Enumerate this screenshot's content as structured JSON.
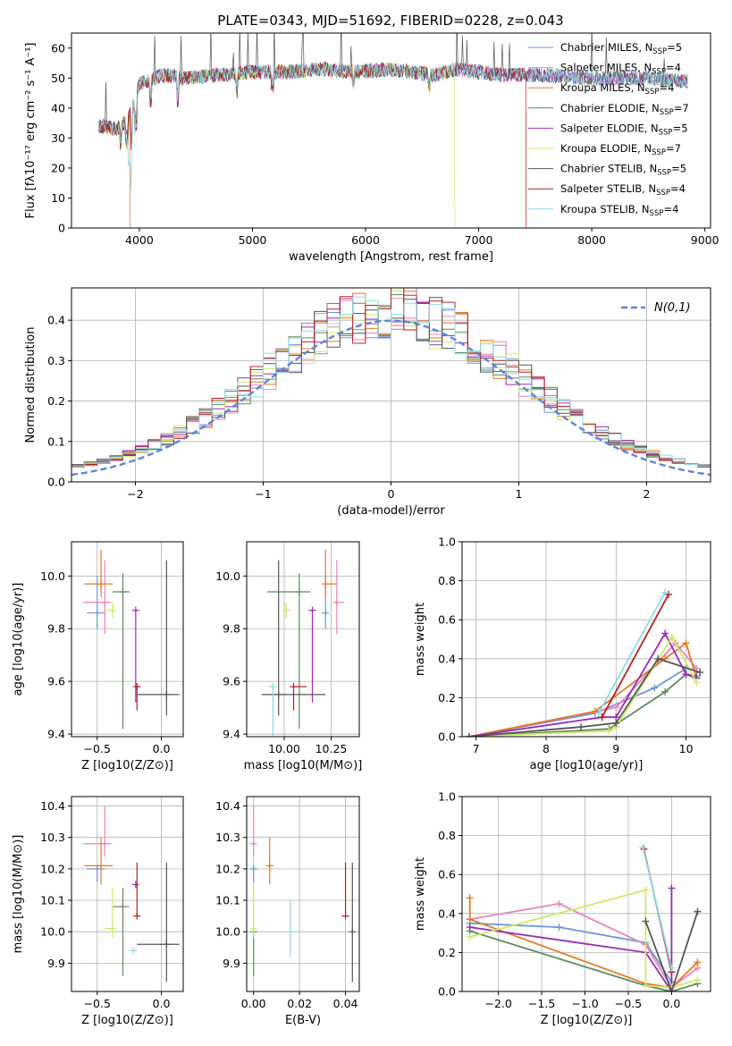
{
  "title": "PLATE=0343, MJD=51692, FIBERID=0228, z=0.043",
  "colors": {
    "Chabrier MILES": "#6f95d8",
    "Salpeter MILES": "#e884bb",
    "Kroupa MILES": "#e07a26",
    "Chabrier ELODIE": "#5e8a5b",
    "Salpeter ELODIE": "#9a2bb0",
    "Kroupa ELODIE": "#cde86a",
    "Chabrier STELIB": "#555555",
    "Salpeter STELIB": "#b22222",
    "Kroupa STELIB": "#8fd8e6",
    "normal": "#5b85d8"
  },
  "chart_data": [
    {
      "type": "line",
      "name": "spectrum",
      "xlabel": "wavelength [Angstrom, rest frame]",
      "ylabel": "Flux [fλ10⁻¹⁷ erg cm⁻² s⁻¹ A⁻¹]",
      "xlim": [
        3400,
        9050
      ],
      "ylim": [
        0,
        65
      ],
      "xticks": [
        4000,
        5000,
        6000,
        7000,
        8000,
        9000
      ],
      "yticks": [
        0,
        10,
        20,
        30,
        40,
        50,
        60
      ],
      "legend": "top-right",
      "legend_entries": [
        "Chabrier MILES, NSSP=5",
        "Salpeter MILES, NSSP=4",
        "Kroupa MILES, NSSP=4",
        "Chabrier ELODIE, NSSP=7",
        "Salpeter ELODIE, NSSP=5",
        "Kroupa ELODIE, NSSP=7",
        "Chabrier STELIB, NSSP=5",
        "Salpeter STELIB, NSSP=4",
        "Kroupa STELIB, NSSP=4"
      ],
      "continuum": [
        [
          3650,
          34
        ],
        [
          3800,
          33
        ],
        [
          3900,
          36
        ],
        [
          4000,
          48
        ],
        [
          4200,
          51
        ],
        [
          4400,
          50
        ],
        [
          4700,
          51
        ],
        [
          5000,
          52
        ],
        [
          5300,
          52
        ],
        [
          5600,
          53
        ],
        [
          5900,
          52
        ],
        [
          6200,
          53
        ],
        [
          6600,
          51
        ],
        [
          6800,
          53
        ],
        [
          7200,
          51
        ],
        [
          7600,
          51
        ],
        [
          8000,
          50
        ],
        [
          8500,
          50
        ],
        [
          8800,
          49
        ]
      ],
      "drops": [
        {
          "model": "Kroupa MILES",
          "x": 3920
        },
        {
          "model": "Kroupa ELODIE",
          "x": 6790
        },
        {
          "model": "Salpeter STELIB",
          "x": 7420
        }
      ]
    },
    {
      "type": "line",
      "name": "residual-histogram",
      "xlabel": "(data-model)/error",
      "ylabel": "Normed distribution",
      "xlim": [
        -2.5,
        2.5
      ],
      "ylim": [
        0,
        0.48
      ],
      "xticks": [
        -2,
        -1,
        0,
        1,
        2
      ],
      "yticks": [
        0.0,
        0.1,
        0.2,
        0.3,
        0.4
      ],
      "grid": true,
      "legend": "top-right",
      "legend_label": "N(0,1)",
      "bin_width": 0.1
    },
    {
      "type": "scatter",
      "name": "age-vs-Z",
      "xlabel": "Z [log10(Z/Z⊙)]",
      "ylabel": "age  [log10(age/yr)]",
      "xlim": [
        -0.7,
        0.17
      ],
      "ylim": [
        9.39,
        10.13
      ],
      "xticks": [
        -0.5,
        0.0
      ],
      "yticks": [
        9.4,
        9.6,
        9.8,
        10.0
      ],
      "grid": true,
      "points": [
        {
          "model": "Chabrier MILES",
          "x": -0.5,
          "y": 9.86,
          "xerr": [
            0.08,
            0.06
          ],
          "yerr": [
            0.06,
            0.14
          ]
        },
        {
          "model": "Salpeter MILES",
          "x": -0.44,
          "y": 9.9,
          "xerr": [
            0.17,
            0.05
          ],
          "yerr": [
            0.12,
            0.16
          ]
        },
        {
          "model": "Kroupa MILES",
          "x": -0.47,
          "y": 9.97,
          "xerr": [
            0.13,
            0.09
          ],
          "yerr": [
            0.05,
            0.13
          ]
        },
        {
          "model": "Chabrier ELODIE",
          "x": -0.3,
          "y": 9.94,
          "xerr": [
            0.08,
            0.05
          ],
          "yerr": [
            0.52,
            0.07
          ]
        },
        {
          "model": "Salpeter ELODIE",
          "x": -0.2,
          "y": 9.87,
          "xerr": [
            0.0,
            0.0
          ],
          "yerr": [
            0.35,
            0.0
          ]
        },
        {
          "model": "Kroupa ELODIE",
          "x": -0.38,
          "y": 9.87,
          "xerr": [
            0.06,
            0.02
          ],
          "yerr": [
            0.03,
            0.03
          ]
        },
        {
          "model": "Chabrier STELIB",
          "x": 0.04,
          "y": 9.55,
          "xerr": [
            0.23,
            0.1
          ],
          "yerr": [
            0.08,
            0.51
          ]
        },
        {
          "model": "Salpeter STELIB",
          "x": -0.19,
          "y": 9.58,
          "xerr": [
            0.02,
            0.02
          ],
          "yerr": [
            0.09,
            0.0
          ]
        }
      ]
    },
    {
      "type": "scatter",
      "name": "age-vs-mass",
      "xlabel": "mass [log10(M/M⊙)]",
      "ylabel": "",
      "xlim": [
        9.8,
        10.4
      ],
      "ylim": [
        9.39,
        10.13
      ],
      "xticks": [
        10.0,
        10.25
      ],
      "yticks": [
        9.4,
        9.6,
        9.8,
        10.0
      ],
      "grid": true,
      "points": [
        {
          "model": "Chabrier MILES",
          "x": 10.22,
          "y": 9.86,
          "xerr": [
            0.02,
            0.01
          ],
          "yerr": [
            0.06,
            0.14
          ]
        },
        {
          "model": "Salpeter MILES",
          "x": 10.28,
          "y": 9.9,
          "xerr": [
            0.02,
            0.04
          ],
          "yerr": [
            0.12,
            0.16
          ]
        },
        {
          "model": "Kroupa MILES",
          "x": 10.22,
          "y": 9.97,
          "xerr": [
            0.0,
            0.06
          ],
          "yerr": [
            0.05,
            0.13
          ]
        },
        {
          "model": "Chabrier ELODIE",
          "x": 10.08,
          "y": 9.94,
          "xerr": [
            0.17,
            0.06
          ],
          "yerr": [
            0.52,
            0.07
          ]
        },
        {
          "model": "Salpeter ELODIE",
          "x": 10.15,
          "y": 9.87,
          "xerr": [
            0.0,
            0.0
          ],
          "yerr": [
            0.35,
            0.0
          ]
        },
        {
          "model": "Kroupa ELODIE",
          "x": 10.01,
          "y": 9.87,
          "xerr": [
            0.0,
            0.01
          ],
          "yerr": [
            0.03,
            0.03
          ]
        },
        {
          "model": "Chabrier STELIB",
          "x": 9.97,
          "y": 9.55,
          "xerr": [
            0.09,
            0.25
          ],
          "yerr": [
            0.08,
            0.51
          ]
        },
        {
          "model": "Salpeter STELIB",
          "x": 10.05,
          "y": 9.58,
          "xerr": [
            0.0,
            0.07
          ],
          "yerr": [
            0.09,
            0.0
          ]
        },
        {
          "model": "Kroupa STELIB",
          "x": 9.94,
          "y": 9.58,
          "xerr": [
            0.0,
            0.01
          ],
          "yerr": [
            0.37,
            0.0
          ]
        }
      ]
    },
    {
      "type": "line",
      "name": "weight-vs-age",
      "xlabel": "age  [log10(age/yr)]",
      "ylabel": "mass weight",
      "xlim": [
        6.8,
        10.35
      ],
      "ylim": [
        0,
        1
      ],
      "xticks": [
        7,
        8,
        9,
        10
      ],
      "yticks": [
        0.0,
        0.2,
        0.4,
        0.6,
        0.8,
        1.0
      ],
      "grid": true,
      "series": [
        {
          "model": "Chabrier MILES",
          "x": [
            6.9,
            8.7,
            9.55,
            10.0
          ],
          "y": [
            0.0,
            0.12,
            0.25,
            0.35
          ]
        },
        {
          "model": "Salpeter MILES",
          "x": [
            6.9,
            9.0,
            9.85,
            10.15
          ],
          "y": [
            0.0,
            0.15,
            0.48,
            0.35
          ]
        },
        {
          "model": "Kroupa MILES",
          "x": [
            6.9,
            8.7,
            9.7,
            10.0,
            10.15
          ],
          "y": [
            0.0,
            0.13,
            0.4,
            0.48,
            0.3
          ]
        },
        {
          "model": "Chabrier ELODIE",
          "x": [
            6.9,
            8.9,
            9.7,
            10.0,
            10.15
          ],
          "y": [
            0.0,
            0.04,
            0.23,
            0.32,
            0.31
          ]
        },
        {
          "model": "Salpeter ELODIE",
          "x": [
            6.9,
            8.8,
            9.0,
            9.7,
            10.0,
            10.15
          ],
          "y": [
            0.0,
            0.1,
            0.1,
            0.53,
            0.32,
            0.3
          ]
        },
        {
          "model": "Kroupa ELODIE",
          "x": [
            6.9,
            8.9,
            9.0,
            9.8,
            10.15
          ],
          "y": [
            0.0,
            0.03,
            0.05,
            0.51,
            0.28
          ]
        },
        {
          "model": "Chabrier STELIB",
          "x": [
            6.9,
            8.5,
            9.0,
            9.6,
            10.2
          ],
          "y": [
            0.0,
            0.05,
            0.07,
            0.4,
            0.33
          ]
        },
        {
          "model": "Salpeter STELIB",
          "x": [
            8.8,
            9.75
          ],
          "y": [
            0.1,
            0.73
          ]
        },
        {
          "model": "Kroupa STELIB",
          "x": [
            8.75,
            9.7
          ],
          "y": [
            0.12,
            0.74
          ]
        }
      ]
    },
    {
      "type": "scatter",
      "name": "mass-vs-Z",
      "xlabel": "Z [log10(Z/Z⊙)]",
      "ylabel": "mass [log10(M/M⊙)]",
      "xlim": [
        -0.7,
        0.17
      ],
      "ylim": [
        9.81,
        10.43
      ],
      "xticks": [
        -0.5,
        0.0
      ],
      "yticks": [
        9.9,
        10.0,
        10.1,
        10.2,
        10.3,
        10.4
      ],
      "grid": true,
      "points": [
        {
          "model": "Chabrier MILES",
          "x": -0.5,
          "y": 10.2,
          "xerr": [
            0.08,
            0.06
          ],
          "yerr": [
            0.04,
            0.01
          ]
        },
        {
          "model": "Salpeter MILES",
          "x": -0.44,
          "y": 10.28,
          "xerr": [
            0.17,
            0.05
          ],
          "yerr": [
            0.04,
            0.12
          ]
        },
        {
          "model": "Kroupa MILES",
          "x": -0.47,
          "y": 10.21,
          "xerr": [
            0.13,
            0.09
          ],
          "yerr": [
            0.06,
            0.09
          ]
        },
        {
          "model": "Chabrier ELODIE",
          "x": -0.3,
          "y": 10.08,
          "xerr": [
            0.08,
            0.05
          ],
          "yerr": [
            0.22,
            0.06
          ]
        },
        {
          "model": "Salpeter ELODIE",
          "x": -0.2,
          "y": 10.15,
          "xerr": [
            0.0,
            0.0
          ],
          "yerr": [
            0.0,
            0.0
          ]
        },
        {
          "model": "Kroupa ELODIE",
          "x": -0.38,
          "y": 10.01,
          "xerr": [
            0.06,
            0.02
          ],
          "yerr": [
            0.03,
            0.13
          ]
        },
        {
          "model": "Chabrier STELIB",
          "x": 0.04,
          "y": 9.96,
          "xerr": [
            0.23,
            0.1
          ],
          "yerr": [
            0.12,
            0.26
          ]
        },
        {
          "model": "Salpeter STELIB",
          "x": -0.19,
          "y": 10.05,
          "xerr": [
            0.0,
            0.0
          ],
          "yerr": [
            0.0,
            0.17
          ]
        },
        {
          "model": "Kroupa STELIB",
          "x": -0.22,
          "y": 9.94,
          "xerr": [
            0.0,
            0.02
          ],
          "yerr": [
            0.0,
            0.0
          ]
        }
      ]
    },
    {
      "type": "scatter",
      "name": "mass-vs-EBV",
      "xlabel": "E(B-V)",
      "ylabel": "",
      "xlim": [
        -0.003,
        0.046
      ],
      "ylim": [
        9.81,
        10.43
      ],
      "xticks": [
        0.0,
        0.02,
        0.04
      ],
      "yticks": [
        9.9,
        10.0,
        10.1,
        10.2,
        10.3,
        10.4
      ],
      "grid": true,
      "points": [
        {
          "model": "Chabrier MILES",
          "x": 0.0,
          "y": 10.2,
          "yerr": [
            0.04,
            0.01
          ]
        },
        {
          "model": "Salpeter MILES",
          "x": 0.0,
          "y": 10.28,
          "yerr": [
            0.04,
            0.12
          ]
        },
        {
          "model": "Kroupa MILES",
          "x": 0.007,
          "y": 10.21,
          "yerr": [
            0.06,
            0.09
          ]
        },
        {
          "model": "Chabrier ELODIE",
          "x": 0.0,
          "y": 10.0,
          "yerr": [
            0.14,
            0.0
          ]
        },
        {
          "model": "Kroupa ELODIE",
          "x": 0.0,
          "y": 10.01,
          "yerr": [
            0.03,
            0.13
          ]
        },
        {
          "model": "Chabrier STELIB",
          "x": 0.043,
          "y": 10.0,
          "yerr": [
            0.16,
            0.22
          ]
        },
        {
          "model": "Salpeter STELIB",
          "x": 0.04,
          "y": 10.05,
          "yerr": [
            0.0,
            0.17
          ]
        },
        {
          "model": "Kroupa STELIB",
          "x": 0.016,
          "y": 10.0,
          "yerr": [
            0.08,
            0.1
          ]
        }
      ]
    },
    {
      "type": "line",
      "name": "weight-vs-Z",
      "xlabel": "Z [log10(Z/Z⊙)]",
      "ylabel": "mass weight",
      "xlim": [
        -2.42,
        0.45
      ],
      "ylim": [
        0,
        1
      ],
      "xticks": [
        -2.0,
        -1.5,
        -1.0,
        -0.5,
        0.0
      ],
      "yticks": [
        0.0,
        0.2,
        0.4,
        0.6,
        0.8,
        1.0
      ],
      "grid": true,
      "series": [
        {
          "model": "Chabrier MILES",
          "x": [
            -2.33,
            -1.3,
            -0.3,
            0.0
          ],
          "y": [
            0.35,
            0.33,
            0.25,
            0.05
          ]
        },
        {
          "model": "Salpeter MILES",
          "x": [
            -2.33,
            -1.3,
            -0.3,
            0.0,
            0.3
          ],
          "y": [
            0.37,
            0.45,
            0.24,
            0.02,
            0.12
          ]
        },
        {
          "model": "Kroupa MILES",
          "x": [
            -2.33,
            -2.33,
            -0.3,
            0.0,
            0.3
          ],
          "y": [
            0.48,
            0.37,
            0.04,
            0.02,
            0.15
          ]
        },
        {
          "model": "Chabrier ELODIE",
          "x": [
            -2.33,
            -0.3,
            0.0,
            0.3
          ],
          "y": [
            0.31,
            0.03,
            0.0,
            0.04
          ]
        },
        {
          "model": "Salpeter ELODIE",
          "x": [
            -2.33,
            -0.3,
            0.0,
            0.0,
            0.0
          ],
          "y": [
            0.33,
            0.2,
            0.0,
            0.53,
            0.1
          ]
        },
        {
          "model": "Kroupa ELODIE",
          "x": [
            -2.33,
            -0.3,
            -0.3,
            0.0,
            0.3
          ],
          "y": [
            0.28,
            0.52,
            0.03,
            0.02,
            0.06
          ]
        },
        {
          "model": "Chabrier STELIB",
          "x": [
            -0.3,
            0.0,
            0.0,
            0.3
          ],
          "y": [
            0.36,
            0.0,
            0.0,
            0.41
          ]
        },
        {
          "model": "Salpeter STELIB",
          "x": [
            -0.32,
            0.0
          ],
          "y": [
            0.73,
            0.1
          ]
        },
        {
          "model": "Kroupa STELIB",
          "x": [
            -0.33,
            0.0
          ],
          "y": [
            0.74,
            0.12
          ]
        }
      ]
    }
  ]
}
